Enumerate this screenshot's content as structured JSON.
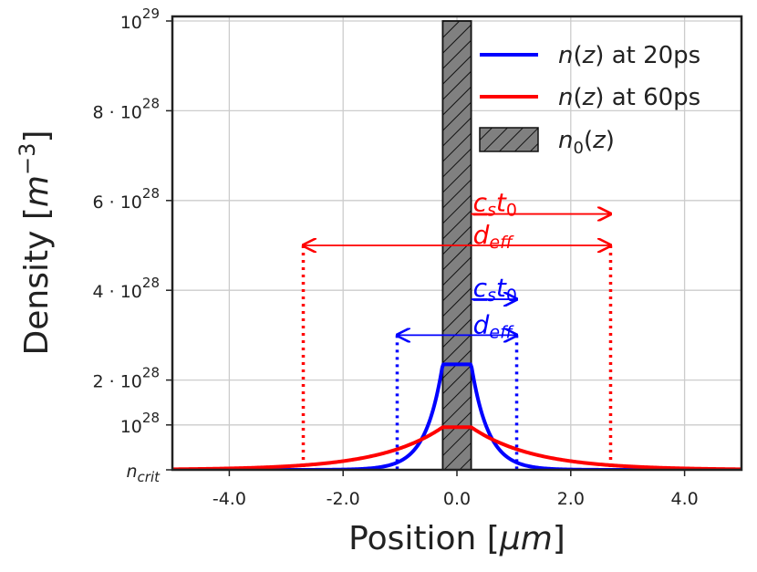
{
  "chart_data": {
    "type": "line",
    "xlabel_prefix": "Position [",
    "xlabel_unit": "μm",
    "xlabel_suffix": "]",
    "ylabel_prefix": "Density [",
    "ylabel_unit": "m",
    "ylabel_exp": "−3",
    "ylabel_suffix": "]",
    "xlim": [
      -5,
      5
    ],
    "ylim": [
      0,
      1e+29
    ],
    "grid": true,
    "x_ticks": [
      {
        "value": -4,
        "label": "-4.0"
      },
      {
        "value": -2,
        "label": "-2.0"
      },
      {
        "value": 0,
        "label": "0.0"
      },
      {
        "value": 2,
        "label": "2.0"
      },
      {
        "value": 4,
        "label": "4.0"
      }
    ],
    "y_ticks": [
      {
        "value": 0,
        "mant": "",
        "base": "",
        "exp": "",
        "italic": "n",
        "sub": "crit"
      },
      {
        "value": 1e+28,
        "mant": "",
        "base": "10",
        "exp": "28"
      },
      {
        "value": 2e+28,
        "mant": "2 · ",
        "base": "10",
        "exp": "28"
      },
      {
        "value": 4e+28,
        "mant": "4 · ",
        "base": "10",
        "exp": "28"
      },
      {
        "value": 6e+28,
        "mant": "6 · ",
        "base": "10",
        "exp": "28"
      },
      {
        "value": 8e+28,
        "mant": "8 · ",
        "base": "10",
        "exp": "28"
      },
      {
        "value": 1e+29,
        "mant": "",
        "base": "10",
        "exp": "29"
      }
    ],
    "series": [
      {
        "name": "n(z) at 20ps",
        "color": "#0000ff",
        "plateau": 2.35e+28,
        "half_width": 0.25,
        "decay": 0.3
      },
      {
        "name": "n(z) at 60ps",
        "color": "#ff0000",
        "plateau": 9.5e+27,
        "half_width": 0.25,
        "decay": 1.1
      }
    ],
    "initial_profile": {
      "name": "n0(z)",
      "x_range": [
        -0.25,
        0.25
      ],
      "value": 1e+29,
      "color": "#808080"
    },
    "legend": {
      "position": "top-right",
      "entries": [
        {
          "italic": "n",
          "sub": "",
          "text": "(z) at 20ps",
          "italic_z": true,
          "color": "#0000ff",
          "kind": "line"
        },
        {
          "italic": "n",
          "sub": "",
          "text": "(z) at 60ps",
          "italic_z": true,
          "color": "#ff0000",
          "kind": "line"
        },
        {
          "italic": "n",
          "sub": "0",
          "text": "(z)",
          "italic_z": true,
          "color": "#808080",
          "kind": "hatch"
        }
      ]
    },
    "annotations": [
      {
        "series": "60ps",
        "color": "#ff0000",
        "cs_t0": [
          0.25,
          2.7
        ],
        "cs_t0_y": 5.7e+28,
        "d_eff": [
          -2.7,
          2.7
        ],
        "d_eff_y": 5e+28,
        "label_cs": "c",
        "label_cs_sub": "s",
        "label_t": "t",
        "label_t_sub": "0",
        "label_d": "d",
        "label_d_sub": "eff"
      },
      {
        "series": "20ps",
        "color": "#0000ff",
        "cs_t0": [
          0.25,
          1.05
        ],
        "cs_t0_y": 3.8e+28,
        "d_eff": [
          -1.05,
          1.05
        ],
        "d_eff_y": 3e+28,
        "label_cs": "c",
        "label_cs_sub": "s",
        "label_t": "t",
        "label_t_sub": "0",
        "label_d": "d",
        "label_d_sub": "eff"
      }
    ]
  }
}
